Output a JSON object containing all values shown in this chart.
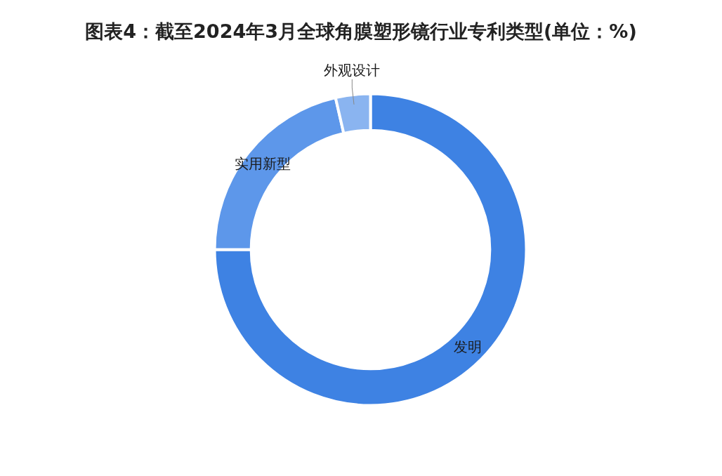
{
  "chart_data": {
    "type": "donut",
    "title": "图表4：截至2024年3月全球角膜塑形镜行业专利类型(单位：%)",
    "categories": [
      "发明",
      "实用新型",
      "外观设计"
    ],
    "values": [
      75,
      21.4,
      3.6
    ],
    "colors": [
      "#3e82e3",
      "#5d97ea",
      "#8ab4f0"
    ]
  }
}
